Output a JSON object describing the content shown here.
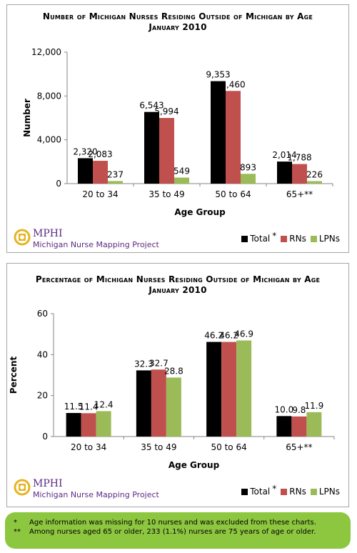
{
  "chart_data": [
    {
      "type": "bar",
      "title": "Number of Michigan Nurses Residing Outside of Michigan by Age",
      "subtitle": "January 2010",
      "xlabel": "Age Group",
      "ylabel": "Number",
      "ylim": [
        0,
        12000
      ],
      "yticks": [
        "0",
        "4,000",
        "8,000",
        "12,000"
      ],
      "ytick_values": [
        0,
        4000,
        8000,
        12000
      ],
      "categories": [
        "20 to 34",
        "35 to 49",
        "50 to 64",
        "65+**"
      ],
      "series": [
        {
          "name": "Total",
          "color": "#000000",
          "values": [
            2320,
            6543,
            9353,
            2014
          ],
          "labels": [
            "2,320",
            "6,543",
            "9,353",
            "2,014"
          ]
        },
        {
          "name": "RNs",
          "color": "#c0504d",
          "values": [
            2083,
            5994,
            8460,
            1788
          ],
          "labels": [
            "2,083",
            "5,994",
            "8,460",
            "1,788"
          ]
        },
        {
          "name": "LPNs",
          "color": "#9bbb59",
          "values": [
            237,
            549,
            893,
            226
          ],
          "labels": [
            "237",
            "549",
            "893",
            "226"
          ]
        }
      ],
      "grid": false,
      "legend_position": "bottom-right"
    },
    {
      "type": "bar",
      "title": "Percentage of Michigan Nurses Residing Outside of Michigan by Age",
      "subtitle": "January 2010",
      "xlabel": "Age Group",
      "ylabel": "Percent",
      "ylim": [
        0,
        60
      ],
      "yticks": [
        "0",
        "20",
        "40",
        "60"
      ],
      "ytick_values": [
        0,
        20,
        40,
        60
      ],
      "categories": [
        "20 to 34",
        "35 to 49",
        "50 to 64",
        "65+**"
      ],
      "series": [
        {
          "name": "Total",
          "color": "#000000",
          "values": [
            11.5,
            32.3,
            46.2,
            10.0
          ],
          "labels": [
            "11.5",
            "32.3",
            "46.2",
            "10.0"
          ]
        },
        {
          "name": "RNs",
          "color": "#c0504d",
          "values": [
            11.4,
            32.7,
            46.2,
            9.8
          ],
          "labels": [
            "11.4",
            "32.7",
            "46.2",
            "9.8"
          ]
        },
        {
          "name": "LPNs",
          "color": "#9bbb59",
          "values": [
            12.4,
            28.8,
            46.9,
            11.9
          ],
          "labels": [
            "12.4",
            "28.8",
            "46.9",
            "11.9"
          ]
        }
      ],
      "grid": false,
      "legend_position": "bottom-right"
    }
  ],
  "legend": {
    "total": "Total",
    "total_star": "*",
    "rns": "RNs",
    "lpns": "LPNs"
  },
  "logo": {
    "name": "MPHI",
    "subtitle": "Michigan Nurse Mapping Project"
  },
  "footnotes": [
    {
      "mark": "*",
      "text": "Age information was missing for 10 nurses and was excluded from these charts."
    },
    {
      "mark": "**",
      "text": "Among nurses aged 65 or older, 233 (1.1%) nurses are 75 years of age or older."
    }
  ],
  "colors": {
    "total": "#000000",
    "rns": "#c0504d",
    "lpns": "#9bbb59",
    "footnote_bg": "#8dc63f",
    "brand": "#5b2c83"
  }
}
